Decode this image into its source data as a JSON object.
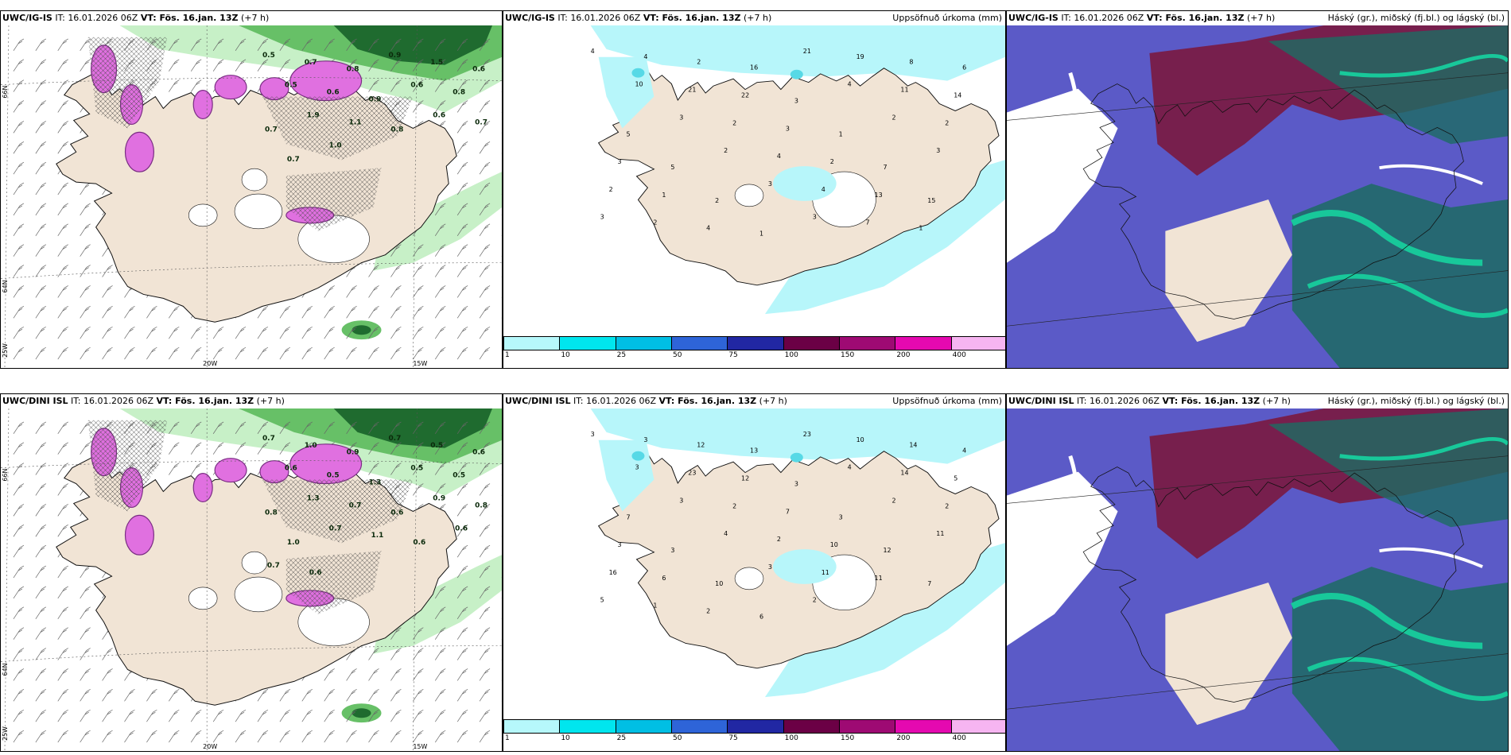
{
  "colors": {
    "land": "#f1e4d5",
    "coast": "#111111",
    "green_light": "#c7f0c7",
    "green_mid": "#67c067",
    "green_dark": "#1f6b2f",
    "magenta": "#e070e0",
    "purple": "#7a2d83",
    "cyan_light": "#b7f6fa",
    "cyan": "#57d9e6",
    "blue": "#5b5ac7",
    "darkred": "#7d1537",
    "teal": "#18c89a",
    "tealdark": "#1d6b63"
  },
  "panels": {
    "r1c1": {
      "title_bold": "UWC/IG-IS",
      "title_rest": " IT: 16.01.2026 06Z ",
      "vt_bold": "VT: Fös. 16.jan. 13Z",
      "vt_rest": " (+7 h)",
      "right": ""
    },
    "r1c2": {
      "title_bold": "UWC/IG-IS",
      "title_rest": " IT: 16.01.2026 06Z ",
      "vt_bold": "VT: Fös. 16.jan. 13Z",
      "vt_rest": " (+7 h)",
      "right": "Uppsöfnuð úrkoma (mm)"
    },
    "r1c3": {
      "title_bold": "UWC/IG-IS",
      "title_rest": " IT: 16.01.2026 06Z ",
      "vt_bold": "VT: Fös. 16.jan. 13Z",
      "vt_rest": " (+7 h)",
      "right": "Háský (gr.), miðský (fj.bl.) og lágský (bl.)"
    },
    "r2c1": {
      "title_bold": "UWC/DINI ISL",
      "title_rest": " IT: 16.01.2026 06Z ",
      "vt_bold": "VT: Fös. 16.jan. 13Z",
      "vt_rest": " (+7 h)",
      "right": ""
    },
    "r2c2": {
      "title_bold": "UWC/DINI ISL",
      "title_rest": " IT: 16.01.2026 06Z ",
      "vt_bold": "VT: Fös. 16.jan. 13Z",
      "vt_rest": " (+7 h)",
      "right": "Uppsöfnuð úrkoma (mm)"
    },
    "r2c3": {
      "title_bold": "UWC/DINI ISL",
      "title_rest": " IT: 16.01.2026 06Z ",
      "vt_bold": "VT: Fös. 16.jan. 13Z",
      "vt_rest": " (+7 h)",
      "right": "Háský (gr.), miðský (fj.bl.) og lágský (bl.)"
    }
  },
  "grid_labels": {
    "lon_20w": "20W",
    "lon_15w": "15W",
    "lat_66n": "66N",
    "lat_64n": "64N",
    "lon_25w": "25W"
  },
  "legend": {
    "labels": [
      "1",
      "10",
      "25",
      "50",
      "75",
      "100",
      "150",
      "200",
      "400"
    ],
    "colors": [
      "#b6f8fb",
      "#00e6ee",
      "#00bfe4",
      "#2e64d8",
      "#2127a3",
      "#6b0045",
      "#9e0a73",
      "#e509b0",
      "#f6b5f1"
    ]
  },
  "precip_labels_r1": [
    "4",
    "4",
    "2",
    "16",
    "21",
    "19",
    "8",
    "6",
    "10",
    "21",
    "22",
    "3",
    "4",
    "11",
    "14",
    "5",
    "3",
    "2",
    "3",
    "1",
    "2",
    "2",
    "3",
    "5",
    "2",
    "4",
    "2",
    "7",
    "3",
    "2",
    "1",
    "2",
    "3",
    "4",
    "13",
    "15",
    "3",
    "2",
    "4",
    "1",
    "3",
    "7",
    "1"
  ],
  "precip_labels_r2": [
    "3",
    "3",
    "12",
    "13",
    "23",
    "10",
    "14",
    "4",
    "3",
    "23",
    "12",
    "3",
    "4",
    "14",
    "5",
    "7",
    "3",
    "2",
    "7",
    "3",
    "2",
    "2",
    "3",
    "3",
    "4",
    "2",
    "10",
    "12",
    "11",
    "16",
    "6",
    "10",
    "3",
    "11",
    "11",
    "7",
    "5",
    "1",
    "2",
    "6",
    "2"
  ],
  "snow_labels_r1": [
    "0.5",
    "0.7",
    "0.8",
    "0.9",
    "1.5",
    "0.6",
    "0.5",
    "0.6",
    "0.9",
    "0.6",
    "0.8",
    "0.7",
    "1.9",
    "1.1",
    "0.8",
    "0.6",
    "0.7",
    "0.7",
    "1.0"
  ],
  "snow_labels_r2": [
    "0.7",
    "1.0",
    "0.9",
    "0.7",
    "0.5",
    "0.6",
    "0.6",
    "0.5",
    "1.3",
    "0.5",
    "0.5",
    "0.8",
    "1.3",
    "0.7",
    "0.6",
    "0.9",
    "0.8",
    "1.0",
    "0.7",
    "1.1",
    "0.6",
    "0.6",
    "0.7",
    "0.6"
  ]
}
